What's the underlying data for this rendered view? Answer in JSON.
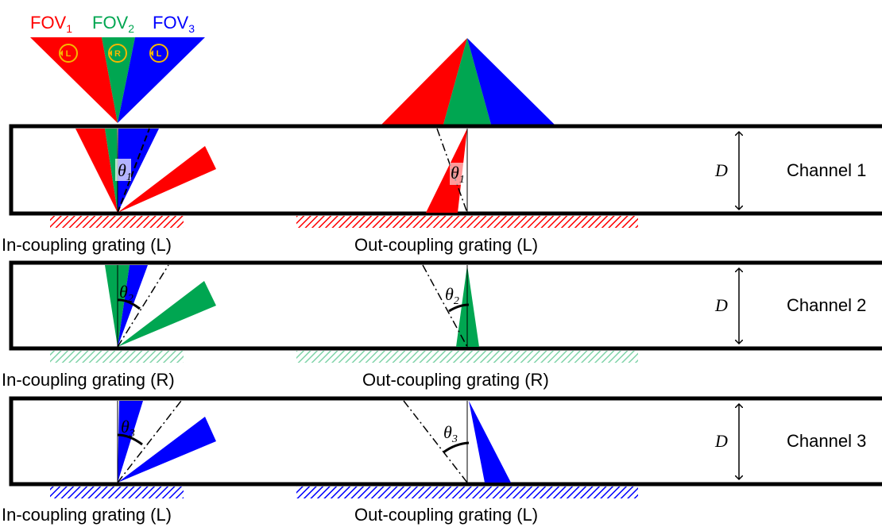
{
  "fov_header": {
    "items": [
      {
        "base": "FOV",
        "sub": "1",
        "color": "#ff0000"
      },
      {
        "base": "FOV",
        "sub": "2",
        "color": "#00a651"
      },
      {
        "base": "FOV",
        "sub": "3",
        "color": "#0000ff"
      }
    ],
    "polarizations": [
      "L",
      "R",
      "L"
    ]
  },
  "colors": {
    "red": "#ff0000",
    "green": "#00a651",
    "blue": "#0000ff",
    "gold": "#f5b800",
    "outline": "#000000"
  },
  "channels": [
    {
      "name": "Channel 1",
      "depth_label": "D",
      "angle_symbol": "θ",
      "angle_sub": "1",
      "in_grating": "In-coupling grating (L)",
      "out_grating": "Out-coupling grating (L)"
    },
    {
      "name": "Channel 2",
      "depth_label": "D",
      "angle_symbol": "θ",
      "angle_sub": "2",
      "in_grating": "In-coupling grating (R)",
      "out_grating": "Out-coupling grating (R)"
    },
    {
      "name": "Channel 3",
      "depth_label": "D",
      "angle_symbol": "θ",
      "angle_sub": "3",
      "in_grating": "In-coupling grating (L)",
      "out_grating": "Out-coupling grating (L)"
    }
  ]
}
